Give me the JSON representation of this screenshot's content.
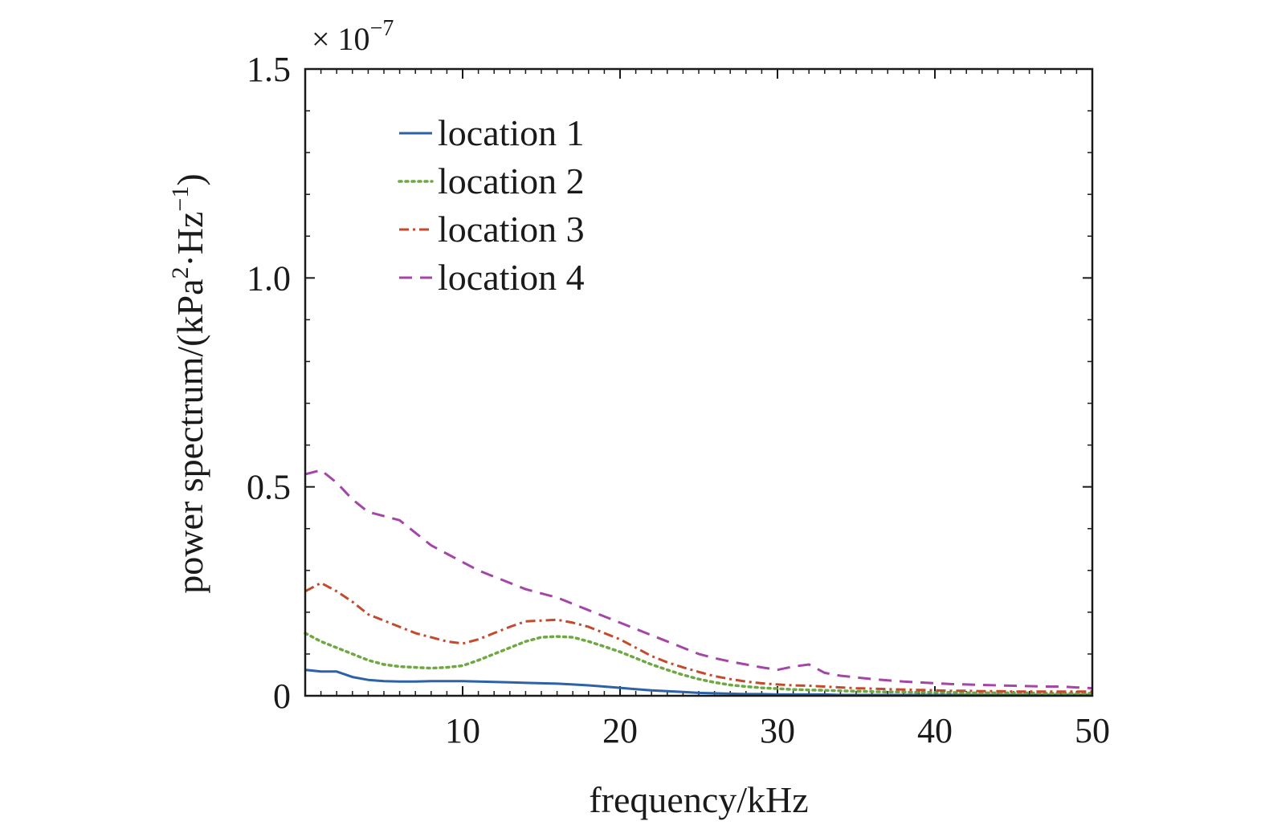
{
  "chart_data": {
    "type": "line",
    "title": "",
    "xlabel": "frequency/kHz",
    "ylabel_parts": {
      "prefix": "power spectrum/(kPa",
      "sup1": "2",
      "mid": "·Hz",
      "sup2": "−1",
      "suffix": ")"
    },
    "y_scale_factor": {
      "text": "× 10",
      "exponent": "−7"
    },
    "xlim": [
      0,
      50
    ],
    "ylim": [
      0,
      1.5
    ],
    "x_ticks": [
      10,
      20,
      30,
      40,
      50
    ],
    "x_tick_labels": [
      "10",
      "20",
      "30",
      "40",
      "50"
    ],
    "y_ticks": [
      0,
      0.5,
      1.0,
      1.5
    ],
    "y_tick_labels": [
      "0",
      "0.5",
      "1.0",
      "1.5"
    ],
    "grid": false,
    "legend_position": "upper-left",
    "x": [
      0,
      1,
      2,
      3,
      4,
      5,
      6,
      7,
      8,
      9,
      10,
      11,
      12,
      13,
      14,
      15,
      16,
      17,
      18,
      19,
      20,
      21,
      22,
      23,
      24,
      25,
      26,
      27,
      28,
      29,
      30,
      31,
      32,
      33,
      34,
      35,
      36,
      37,
      38,
      39,
      40,
      41,
      42,
      43,
      44,
      45,
      46,
      47,
      48,
      49,
      50
    ],
    "series": [
      {
        "name": "location 1",
        "color": "#2d62a8",
        "dash": "solid",
        "values": [
          0.062,
          0.058,
          0.058,
          0.045,
          0.038,
          0.035,
          0.034,
          0.034,
          0.035,
          0.035,
          0.035,
          0.034,
          0.033,
          0.032,
          0.031,
          0.03,
          0.029,
          0.027,
          0.025,
          0.022,
          0.019,
          0.016,
          0.013,
          0.011,
          0.009,
          0.007,
          0.006,
          0.005,
          0.004,
          0.004,
          0.003,
          0.003,
          0.003,
          0.003,
          0.002,
          0.002,
          0.002,
          0.002,
          0.002,
          0.002,
          0.002,
          0.002,
          0.002,
          0.002,
          0.002,
          0.002,
          0.002,
          0.002,
          0.002,
          0.002,
          0.002
        ]
      },
      {
        "name": "location 2",
        "color": "#6ea842",
        "dash": "dotted",
        "values": [
          0.15,
          0.13,
          0.115,
          0.1,
          0.085,
          0.075,
          0.07,
          0.068,
          0.066,
          0.068,
          0.072,
          0.085,
          0.1,
          0.115,
          0.13,
          0.14,
          0.142,
          0.14,
          0.13,
          0.118,
          0.105,
          0.09,
          0.075,
          0.062,
          0.05,
          0.04,
          0.032,
          0.026,
          0.022,
          0.019,
          0.017,
          0.015,
          0.014,
          0.013,
          0.012,
          0.011,
          0.01,
          0.009,
          0.009,
          0.008,
          0.008,
          0.008,
          0.007,
          0.007,
          0.007,
          0.007,
          0.007,
          0.006,
          0.006,
          0.006,
          0.006
        ]
      },
      {
        "name": "location 3",
        "color": "#c34a2c",
        "dash": "dashdot",
        "values": [
          0.25,
          0.27,
          0.25,
          0.225,
          0.195,
          0.18,
          0.165,
          0.15,
          0.14,
          0.13,
          0.125,
          0.135,
          0.15,
          0.165,
          0.178,
          0.18,
          0.182,
          0.175,
          0.165,
          0.15,
          0.135,
          0.115,
          0.095,
          0.08,
          0.068,
          0.057,
          0.047,
          0.04,
          0.034,
          0.03,
          0.027,
          0.025,
          0.024,
          0.022,
          0.02,
          0.018,
          0.017,
          0.016,
          0.015,
          0.014,
          0.013,
          0.012,
          0.012,
          0.011,
          0.011,
          0.01,
          0.01,
          0.01,
          0.01,
          0.01,
          0.01
        ]
      },
      {
        "name": "location 4",
        "color": "#a545a8",
        "dash": "dashed",
        "values": [
          0.53,
          0.54,
          0.51,
          0.47,
          0.44,
          0.43,
          0.42,
          0.39,
          0.36,
          0.34,
          0.32,
          0.3,
          0.285,
          0.27,
          0.255,
          0.245,
          0.235,
          0.22,
          0.205,
          0.19,
          0.175,
          0.16,
          0.145,
          0.13,
          0.115,
          0.1,
          0.09,
          0.082,
          0.075,
          0.068,
          0.062,
          0.07,
          0.075,
          0.055,
          0.048,
          0.044,
          0.04,
          0.037,
          0.034,
          0.032,
          0.03,
          0.028,
          0.027,
          0.026,
          0.025,
          0.024,
          0.023,
          0.022,
          0.022,
          0.02,
          0.018
        ]
      }
    ]
  }
}
